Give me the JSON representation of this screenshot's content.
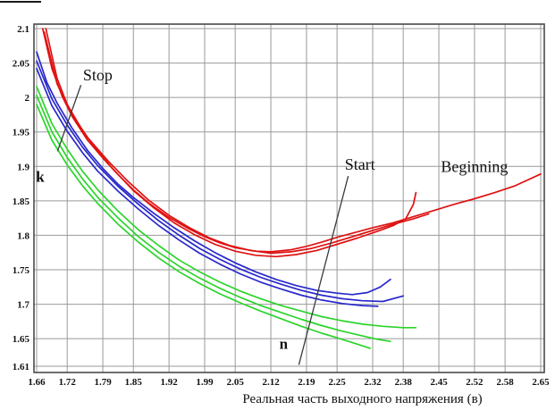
{
  "chart_data": {
    "type": "line",
    "title": "",
    "xlabel": "Реальная часть выходного напряжения (в)",
    "ylabel": "",
    "xlim": [
      1.66,
      2.65
    ],
    "ylim": [
      1.61,
      2.1
    ],
    "grid": true,
    "legend": "none",
    "x_ticks": [
      "1.66",
      "1.72",
      "1.79",
      "1.85",
      "1.92",
      "1.99",
      "2.05",
      "2.12",
      "2.19",
      "2.25",
      "2.32",
      "2.38",
      "2.45",
      "2.52",
      "2.58",
      "2.65"
    ],
    "y_ticks": [
      "2.1",
      "2.05",
      "2",
      "1.95",
      "1.9",
      "1.85",
      "1.8",
      "1.75",
      "1.7",
      "1.65",
      "1.61"
    ],
    "colors": {
      "red": "#df1212",
      "blue": "#2828cc",
      "green": "#2bd42b",
      "grid": "#9a9a9a",
      "border": "#4a4a4a",
      "leader": "#3a3a3a",
      "text": "#111111"
    },
    "series": [
      {
        "name": "red-beginning",
        "color": "#df1212",
        "points": [
          [
            1.672,
            2.1
          ],
          [
            1.69,
            2.042
          ],
          [
            1.71,
            2.002
          ],
          [
            1.73,
            1.972
          ],
          [
            1.76,
            1.938
          ],
          [
            1.79,
            1.912
          ],
          [
            1.82,
            1.888
          ],
          [
            1.85,
            1.866
          ],
          [
            1.88,
            1.847
          ],
          [
            1.92,
            1.826
          ],
          [
            1.96,
            1.809
          ],
          [
            1.99,
            1.798
          ],
          [
            2.02,
            1.789
          ],
          [
            2.05,
            1.782
          ],
          [
            2.09,
            1.777
          ],
          [
            2.12,
            1.776
          ],
          [
            2.16,
            1.779
          ],
          [
            2.19,
            1.784
          ],
          [
            2.22,
            1.79
          ],
          [
            2.25,
            1.797
          ],
          [
            2.29,
            1.805
          ],
          [
            2.32,
            1.811
          ],
          [
            2.36,
            1.818
          ],
          [
            2.4,
            1.827
          ],
          [
            2.44,
            1.836
          ],
          [
            2.48,
            1.845
          ],
          [
            2.52,
            1.853
          ],
          [
            2.56,
            1.862
          ],
          [
            2.6,
            1.872
          ],
          [
            2.65,
            1.889
          ]
        ]
      },
      {
        "name": "red-2",
        "color": "#df1212",
        "points": [
          [
            1.678,
            2.1
          ],
          [
            1.7,
            2.028
          ],
          [
            1.72,
            1.99
          ],
          [
            1.75,
            1.952
          ],
          [
            1.78,
            1.922
          ],
          [
            1.81,
            1.896
          ],
          [
            1.85,
            1.865
          ],
          [
            1.89,
            1.84
          ],
          [
            1.93,
            1.818
          ],
          [
            1.97,
            1.801
          ],
          [
            2.01,
            1.787
          ],
          [
            2.05,
            1.777
          ],
          [
            2.09,
            1.771
          ],
          [
            2.13,
            1.769
          ],
          [
            2.17,
            1.772
          ],
          [
            2.21,
            1.778
          ],
          [
            2.25,
            1.787
          ],
          [
            2.29,
            1.796
          ],
          [
            2.33,
            1.806
          ],
          [
            2.36,
            1.814
          ],
          [
            2.385,
            1.824
          ],
          [
            2.4,
            1.845
          ],
          [
            2.405,
            1.862
          ]
        ]
      },
      {
        "name": "red-3",
        "color": "#df1212",
        "points": [
          [
            1.675,
            2.095
          ],
          [
            1.7,
            2.02
          ],
          [
            1.73,
            1.975
          ],
          [
            1.76,
            1.942
          ],
          [
            1.8,
            1.908
          ],
          [
            1.84,
            1.878
          ],
          [
            1.88,
            1.851
          ],
          [
            1.92,
            1.829
          ],
          [
            1.96,
            1.811
          ],
          [
            2.0,
            1.796
          ],
          [
            2.04,
            1.785
          ],
          [
            2.08,
            1.778
          ],
          [
            2.12,
            1.774
          ],
          [
            2.16,
            1.776
          ],
          [
            2.2,
            1.781
          ],
          [
            2.24,
            1.789
          ],
          [
            2.28,
            1.798
          ],
          [
            2.32,
            1.807
          ],
          [
            2.36,
            1.816
          ],
          [
            2.4,
            1.824
          ],
          [
            2.43,
            1.831
          ]
        ]
      },
      {
        "name": "blue-1",
        "color": "#2828cc",
        "points": [
          [
            1.66,
            2.066
          ],
          [
            1.68,
            2.022
          ],
          [
            1.7,
            1.992
          ],
          [
            1.73,
            1.955
          ],
          [
            1.76,
            1.923
          ],
          [
            1.79,
            1.897
          ],
          [
            1.82,
            1.874
          ],
          [
            1.85,
            1.855
          ],
          [
            1.89,
            1.832
          ],
          [
            1.93,
            1.811
          ],
          [
            1.97,
            1.792
          ],
          [
            2.01,
            1.775
          ],
          [
            2.05,
            1.76
          ],
          [
            2.09,
            1.747
          ],
          [
            2.13,
            1.736
          ],
          [
            2.17,
            1.727
          ],
          [
            2.21,
            1.72
          ],
          [
            2.25,
            1.716
          ],
          [
            2.28,
            1.714
          ],
          [
            2.31,
            1.717
          ],
          [
            2.335,
            1.725
          ],
          [
            2.355,
            1.736
          ]
        ]
      },
      {
        "name": "blue-2",
        "color": "#2828cc",
        "points": [
          [
            1.66,
            2.053
          ],
          [
            1.69,
            1.998
          ],
          [
            1.72,
            1.96
          ],
          [
            1.75,
            1.928
          ],
          [
            1.78,
            1.901
          ],
          [
            1.82,
            1.871
          ],
          [
            1.86,
            1.845
          ],
          [
            1.9,
            1.821
          ],
          [
            1.94,
            1.8
          ],
          [
            1.98,
            1.781
          ],
          [
            2.02,
            1.765
          ],
          [
            2.06,
            1.751
          ],
          [
            2.1,
            1.739
          ],
          [
            2.14,
            1.729
          ],
          [
            2.18,
            1.72
          ],
          [
            2.22,
            1.713
          ],
          [
            2.26,
            1.708
          ],
          [
            2.3,
            1.705
          ],
          [
            2.34,
            1.704
          ],
          [
            2.38,
            1.712
          ]
        ]
      },
      {
        "name": "blue-3",
        "color": "#2828cc",
        "points": [
          [
            1.66,
            2.042
          ],
          [
            1.69,
            1.988
          ],
          [
            1.72,
            1.951
          ],
          [
            1.75,
            1.92
          ],
          [
            1.78,
            1.893
          ],
          [
            1.82,
            1.864
          ],
          [
            1.86,
            1.838
          ],
          [
            1.9,
            1.814
          ],
          [
            1.94,
            1.793
          ],
          [
            1.98,
            1.774
          ],
          [
            2.02,
            1.758
          ],
          [
            2.06,
            1.744
          ],
          [
            2.1,
            1.732
          ],
          [
            2.14,
            1.722
          ],
          [
            2.18,
            1.713
          ],
          [
            2.22,
            1.706
          ],
          [
            2.26,
            1.701
          ],
          [
            2.3,
            1.698
          ],
          [
            2.33,
            1.697
          ]
        ]
      },
      {
        "name": "green-1",
        "color": "#2bd42b",
        "points": [
          [
            1.66,
            2.016
          ],
          [
            1.69,
            1.962
          ],
          [
            1.72,
            1.925
          ],
          [
            1.75,
            1.893
          ],
          [
            1.78,
            1.866
          ],
          [
            1.82,
            1.835
          ],
          [
            1.86,
            1.808
          ],
          [
            1.9,
            1.785
          ],
          [
            1.94,
            1.764
          ],
          [
            1.98,
            1.747
          ],
          [
            2.02,
            1.732
          ],
          [
            2.06,
            1.719
          ],
          [
            2.1,
            1.708
          ],
          [
            2.14,
            1.698
          ],
          [
            2.18,
            1.69
          ],
          [
            2.22,
            1.682
          ],
          [
            2.26,
            1.676
          ],
          [
            2.3,
            1.671
          ],
          [
            2.34,
            1.668
          ],
          [
            2.38,
            1.666
          ],
          [
            2.405,
            1.666
          ]
        ]
      },
      {
        "name": "green-2",
        "color": "#2bd42b",
        "points": [
          [
            1.66,
            2.003
          ],
          [
            1.69,
            1.95
          ],
          [
            1.72,
            1.913
          ],
          [
            1.75,
            1.882
          ],
          [
            1.78,
            1.855
          ],
          [
            1.82,
            1.825
          ],
          [
            1.86,
            1.798
          ],
          [
            1.9,
            1.775
          ],
          [
            1.94,
            1.755
          ],
          [
            1.98,
            1.738
          ],
          [
            2.02,
            1.723
          ],
          [
            2.06,
            1.71
          ],
          [
            2.1,
            1.698
          ],
          [
            2.14,
            1.688
          ],
          [
            2.18,
            1.678
          ],
          [
            2.22,
            1.669
          ],
          [
            2.26,
            1.661
          ],
          [
            2.3,
            1.654
          ],
          [
            2.33,
            1.649
          ],
          [
            2.355,
            1.646
          ]
        ]
      },
      {
        "name": "green-3",
        "color": "#2bd42b",
        "points": [
          [
            1.66,
            1.99
          ],
          [
            1.69,
            1.938
          ],
          [
            1.72,
            1.902
          ],
          [
            1.75,
            1.872
          ],
          [
            1.78,
            1.846
          ],
          [
            1.82,
            1.816
          ],
          [
            1.86,
            1.79
          ],
          [
            1.9,
            1.767
          ],
          [
            1.94,
            1.747
          ],
          [
            1.98,
            1.73
          ],
          [
            2.02,
            1.715
          ],
          [
            2.06,
            1.702
          ],
          [
            2.1,
            1.69
          ],
          [
            2.14,
            1.679
          ],
          [
            2.18,
            1.668
          ],
          [
            2.22,
            1.658
          ],
          [
            2.26,
            1.649
          ],
          [
            2.29,
            1.642
          ],
          [
            2.315,
            1.636
          ]
        ]
      }
    ],
    "annotations": [
      {
        "text": "Stop",
        "x": 1.78,
        "y": 2.025,
        "bold": false
      },
      {
        "text": "k",
        "x": 1.667,
        "y": 1.878,
        "bold": true
      },
      {
        "text": "Start",
        "x": 2.295,
        "y": 1.895,
        "bold": false
      },
      {
        "text": "n",
        "x": 2.145,
        "y": 1.635,
        "bold": true
      },
      {
        "text": "Beginning",
        "x": 2.52,
        "y": 1.892,
        "bold": false
      }
    ],
    "leader_lines": [
      {
        "name": "stop-to-k",
        "from": [
          1.747,
          2.018
        ],
        "to": [
          1.701,
          1.922
        ]
      },
      {
        "name": "start-to-n",
        "from": [
          2.272,
          1.886
        ],
        "to": [
          2.175,
          1.612
        ]
      }
    ]
  }
}
